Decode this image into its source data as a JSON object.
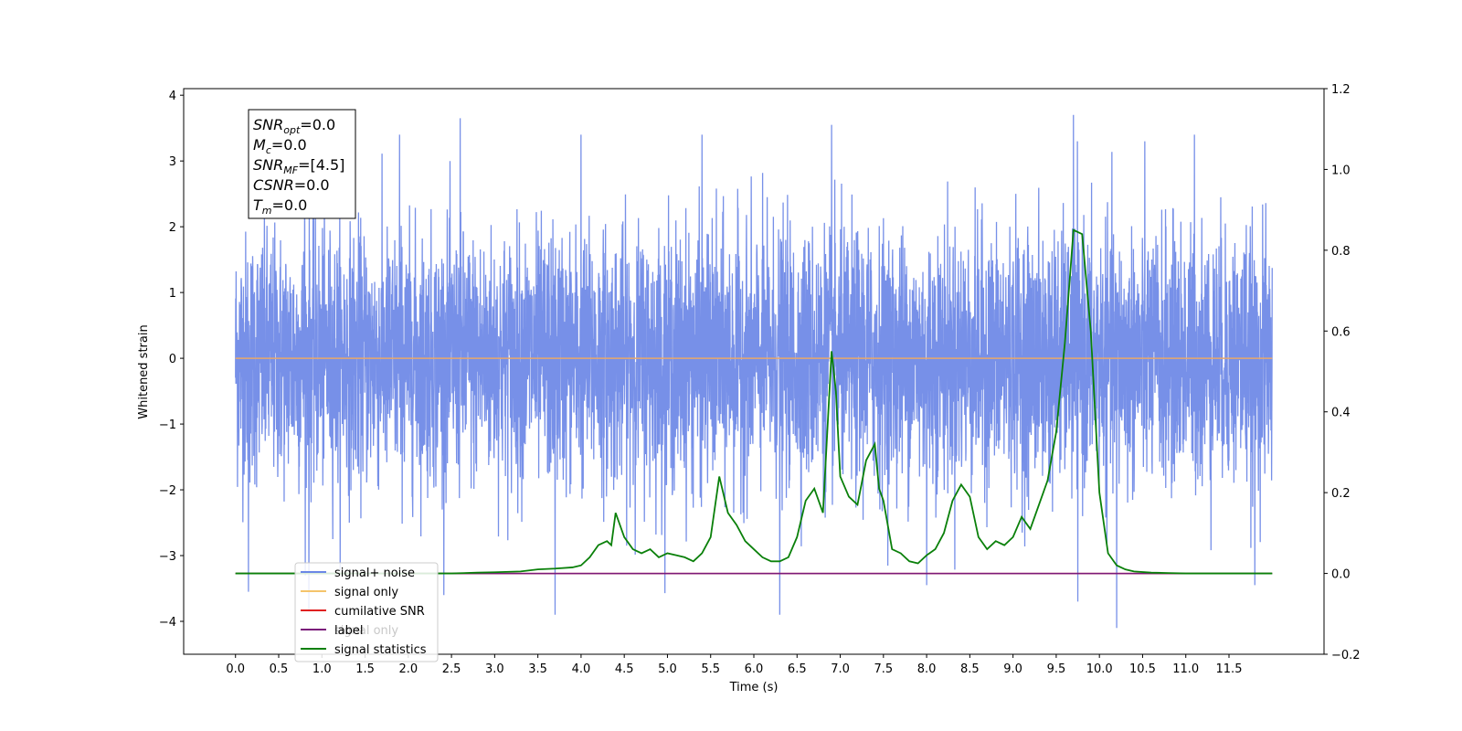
{
  "chart_data": {
    "type": "line",
    "xlabel": "Time (s)",
    "ylabel": "Whitened strain",
    "xlim": [
      -0.6,
      12.6
    ],
    "ylim": [
      -4.5,
      4.1
    ],
    "y2lim": [
      -0.2,
      1.2
    ],
    "x_ticks": [
      0.0,
      0.5,
      1.0,
      1.5,
      2.0,
      2.5,
      3.0,
      3.5,
      4.0,
      4.5,
      5.0,
      5.5,
      6.0,
      6.5,
      7.0,
      7.5,
      8.0,
      8.5,
      9.0,
      9.5,
      10.0,
      10.5,
      11.0,
      11.5
    ],
    "x_tick_labels": [
      "0.0",
      "0.5",
      "1.0",
      "1.5",
      "2.0",
      "2.5",
      "3.0",
      "3.5",
      "4.0",
      "4.5",
      "5.0",
      "5.5",
      "6.0",
      "6.5",
      "7.0",
      "7.5",
      "8.0",
      "8.5",
      "9.0",
      "9.5",
      "10.0",
      "10.5",
      "11.0",
      "11.5"
    ],
    "y_ticks": [
      -4,
      -3,
      -2,
      -1,
      0,
      1,
      2,
      3,
      4
    ],
    "y_tick_labels": [
      "−4",
      "−3",
      "−2",
      "−1",
      "0",
      "1",
      "2",
      "3",
      "4"
    ],
    "y2_ticks": [
      -0.2,
      0.0,
      0.2,
      0.4,
      0.6,
      0.8,
      1.0,
      1.2
    ],
    "y2_tick_labels": [
      "−0.2",
      "0.0",
      "0.2",
      "0.4",
      "0.6",
      "0.8",
      "1.0",
      "1.2"
    ],
    "grid": false,
    "legend_placement": "lower-left",
    "series": [
      {
        "name": "signal+ noise",
        "axis": "left",
        "color": "#6b87e6",
        "x_range": [
          0.0,
          12.0
        ],
        "amplitude_std": 1.0,
        "y_min": -4.1,
        "y_max": 3.7,
        "notable_spikes": [
          [
            0.15,
            -3.55
          ],
          [
            0.8,
            3.1
          ],
          [
            0.85,
            -3.85
          ],
          [
            1.9,
            3.4
          ],
          [
            2.6,
            3.65
          ],
          [
            3.7,
            -3.9
          ],
          [
            4.0,
            3.4
          ],
          [
            5.4,
            3.4
          ],
          [
            6.3,
            -3.9
          ],
          [
            6.9,
            3.55
          ],
          [
            8.0,
            -3.45
          ],
          [
            9.7,
            3.7
          ],
          [
            9.75,
            -3.7
          ],
          [
            10.2,
            -4.1
          ],
          [
            11.1,
            3.4
          ],
          [
            11.8,
            -3.45
          ]
        ]
      },
      {
        "name": "signal only",
        "axis": "left",
        "color": "#e8a86b",
        "x": [
          0.0,
          12.0
        ],
        "y": [
          0.0,
          0.0
        ]
      },
      {
        "name": "cumilative SNR",
        "axis": "right",
        "color": "#e02020",
        "x": [
          0.0,
          12.0
        ],
        "y": [
          0.0,
          0.0
        ]
      },
      {
        "name": "label",
        "axis": "right",
        "color": "#7a1a7a",
        "x": [
          0.0,
          12.0
        ],
        "y": [
          0.0,
          0.0
        ]
      },
      {
        "name": "signal statistics",
        "axis": "right",
        "color": "#0a800a",
        "x": [
          0.0,
          0.5,
          1.0,
          1.5,
          2.0,
          2.5,
          2.8,
          3.0,
          3.3,
          3.5,
          3.7,
          3.9,
          4.0,
          4.1,
          4.2,
          4.3,
          4.35,
          4.4,
          4.5,
          4.6,
          4.7,
          4.8,
          4.9,
          5.0,
          5.1,
          5.2,
          5.3,
          5.4,
          5.5,
          5.6,
          5.7,
          5.8,
          5.9,
          6.0,
          6.1,
          6.2,
          6.3,
          6.4,
          6.5,
          6.6,
          6.7,
          6.8,
          6.85,
          6.9,
          6.95,
          7.0,
          7.1,
          7.2,
          7.3,
          7.4,
          7.45,
          7.5,
          7.6,
          7.7,
          7.8,
          7.9,
          8.0,
          8.1,
          8.2,
          8.3,
          8.4,
          8.5,
          8.6,
          8.7,
          8.8,
          8.9,
          9.0,
          9.1,
          9.2,
          9.3,
          9.4,
          9.5,
          9.6,
          9.7,
          9.8,
          9.9,
          10.0,
          10.1,
          10.2,
          10.3,
          10.4,
          10.6,
          10.8,
          11.0,
          11.5,
          12.0
        ],
        "y": [
          0.0,
          0.0,
          0.0,
          0.0,
          0.0,
          0.0,
          0.002,
          0.003,
          0.005,
          0.01,
          0.012,
          0.015,
          0.02,
          0.04,
          0.07,
          0.08,
          0.07,
          0.15,
          0.09,
          0.06,
          0.05,
          0.06,
          0.04,
          0.05,
          0.045,
          0.04,
          0.03,
          0.05,
          0.09,
          0.24,
          0.15,
          0.12,
          0.08,
          0.06,
          0.04,
          0.03,
          0.03,
          0.04,
          0.09,
          0.18,
          0.21,
          0.15,
          0.35,
          0.55,
          0.45,
          0.24,
          0.19,
          0.17,
          0.28,
          0.32,
          0.21,
          0.18,
          0.06,
          0.05,
          0.03,
          0.025,
          0.045,
          0.06,
          0.1,
          0.18,
          0.22,
          0.19,
          0.09,
          0.06,
          0.08,
          0.07,
          0.09,
          0.14,
          0.11,
          0.17,
          0.23,
          0.35,
          0.57,
          0.85,
          0.84,
          0.6,
          0.2,
          0.05,
          0.02,
          0.01,
          0.005,
          0.002,
          0.001,
          0.0,
          0.0,
          0.0
        ]
      }
    ],
    "legend_entries": [
      {
        "label": "signal+ noise",
        "color": "#6b87e6"
      },
      {
        "label": "signal only",
        "color": "#f5c46b"
      },
      {
        "label": "cumilative SNR",
        "color": "#e02020"
      },
      {
        "label": "label",
        "color": "#7a1a7a"
      },
      {
        "label": "signal statistics",
        "color": "#0a800a"
      }
    ],
    "legend_ghost_text": [
      "signal only"
    ],
    "info_box": [
      {
        "base": "SNR",
        "sub": "opt",
        "value": "=0.0"
      },
      {
        "base": "M",
        "sub": "c",
        "value": "=0.0"
      },
      {
        "base": "SNR",
        "sub": "MF",
        "value": "=[4.5]"
      },
      {
        "base": "CSNR",
        "sub": "",
        "value": "=0.0"
      },
      {
        "base": "T",
        "sub": "m",
        "value": "=0.0"
      }
    ]
  }
}
